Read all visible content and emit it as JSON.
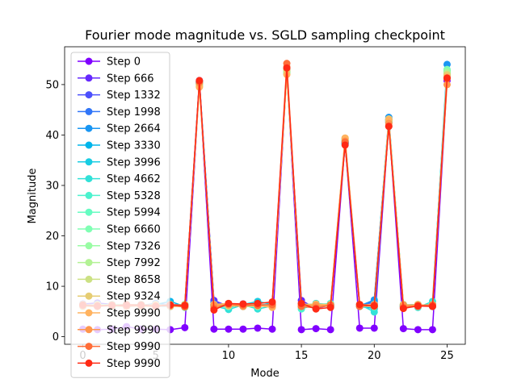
{
  "chart_data": {
    "type": "line",
    "title": "Fourier mode magnitude vs. SGLD sampling checkpoint",
    "xlabel": "Mode",
    "ylabel": "Magnitude",
    "xlim": [
      -1.25,
      26.25
    ],
    "ylim": [
      -1.5,
      57.5
    ],
    "xticks": [
      0,
      5,
      10,
      15,
      20,
      25
    ],
    "yticks": [
      0,
      10,
      20,
      30,
      40,
      50
    ],
    "grid": false,
    "legend_position": "upper-left",
    "x": [
      0,
      1,
      2,
      3,
      4,
      5,
      6,
      7,
      8,
      9,
      10,
      11,
      12,
      13,
      14,
      15,
      16,
      17,
      18,
      19,
      20,
      21,
      22,
      23,
      24,
      25
    ],
    "series": [
      {
        "name": "Step 0",
        "color": "#8000ff",
        "values": [
          1.5,
          1.4,
          1.5,
          2.0,
          1.5,
          1.5,
          1.4,
          1.8,
          50.2,
          1.5,
          1.5,
          1.5,
          1.7,
          1.5,
          52.8,
          1.4,
          1.6,
          1.4,
          38.5,
          1.7,
          1.7,
          42.5,
          1.6,
          1.4,
          1.4,
          50.8
        ]
      },
      {
        "name": "Step 666",
        "color": "#6629fe",
        "values": [
          6.5,
          6.7,
          6.4,
          6.0,
          6.2,
          6.5,
          6.4,
          6.3,
          50.8,
          7.2,
          6.0,
          6.3,
          6.0,
          6.5,
          52.5,
          7.2,
          5.6,
          6.3,
          38.5,
          6.2,
          6.6,
          43.0,
          5.9,
          6.2,
          6.0,
          51.5
        ]
      },
      {
        "name": "Step 1332",
        "color": "#4c50fc",
        "values": [
          6.2,
          6.0,
          6.3,
          6.1,
          6.4,
          6.2,
          6.3,
          6.0,
          50.5,
          6.8,
          6.3,
          6.5,
          6.1,
          6.3,
          52.9,
          6.6,
          6.0,
          6.1,
          38.3,
          6.0,
          6.5,
          42.8,
          6.1,
          6.0,
          6.2,
          52.0
        ]
      },
      {
        "name": "Step 1998",
        "color": "#3176f8",
        "values": [
          6.4,
          6.3,
          6.1,
          6.3,
          6.2,
          6.6,
          6.2,
          6.2,
          50.6,
          6.5,
          6.1,
          6.2,
          6.3,
          6.1,
          53.0,
          6.4,
          6.2,
          6.2,
          38.4,
          6.2,
          7.0,
          43.2,
          6.0,
          6.1,
          6.3,
          52.5
        ]
      },
      {
        "name": "Step 2664",
        "color": "#1996f3",
        "values": [
          6.3,
          6.1,
          6.2,
          6.2,
          6.3,
          6.3,
          6.3,
          6.1,
          50.4,
          6.3,
          6.2,
          6.0,
          6.2,
          6.2,
          52.3,
          6.2,
          6.3,
          6.3,
          38.2,
          6.1,
          7.3,
          43.5,
          6.2,
          6.2,
          6.4,
          54.0
        ]
      },
      {
        "name": "Step 3330",
        "color": "#00b5eb",
        "values": [
          6.1,
          6.2,
          6.3,
          6.4,
          6.0,
          6.4,
          7.0,
          6.0,
          50.5,
          6.4,
          6.3,
          6.1,
          6.4,
          6.3,
          52.6,
          6.3,
          6.1,
          6.0,
          38.6,
          6.0,
          5.6,
          42.9,
          6.1,
          6.3,
          6.1,
          52.8
        ]
      },
      {
        "name": "Step 3996",
        "color": "#18cde3",
        "values": [
          6.0,
          6.4,
          6.0,
          6.2,
          6.3,
          6.1,
          6.0,
          6.3,
          50.3,
          6.2,
          5.8,
          6.4,
          7.0,
          6.4,
          52.4,
          6.0,
          6.6,
          6.4,
          38.4,
          6.3,
          6.0,
          43.1,
          6.3,
          6.4,
          6.0,
          52.2
        ]
      },
      {
        "name": "Step 4662",
        "color": "#32e1d8",
        "values": [
          6.3,
          6.0,
          6.4,
          6.0,
          6.1,
          6.3,
          6.1,
          6.4,
          50.4,
          6.1,
          5.4,
          6.3,
          5.5,
          6.1,
          52.7,
          6.4,
          6.3,
          6.6,
          38.3,
          6.4,
          4.9,
          42.7,
          6.4,
          5.8,
          7.0,
          52.6
        ]
      },
      {
        "name": "Step 5328",
        "color": "#4cf2ce",
        "values": [
          6.2,
          6.3,
          6.2,
          6.3,
          6.4,
          6.0,
          6.2,
          6.2,
          50.2,
          6.0,
          6.6,
          6.1,
          6.3,
          6.2,
          52.9,
          5.5,
          6.4,
          6.0,
          38.7,
          6.2,
          5.9,
          42.6,
          6.2,
          6.2,
          6.2,
          52.4
        ]
      },
      {
        "name": "Step 5994",
        "color": "#66fcc2",
        "values": [
          6.4,
          6.1,
          6.1,
          6.1,
          6.2,
          6.2,
          6.4,
          5.8,
          50.1,
          6.3,
          6.2,
          6.4,
          6.1,
          6.0,
          52.5,
          6.1,
          6.2,
          6.5,
          38.9,
          6.3,
          6.2,
          42.4,
          6.0,
          6.3,
          6.3,
          51.8
        ]
      },
      {
        "name": "Step 6660",
        "color": "#80ffb4",
        "values": [
          6.1,
          6.4,
          6.3,
          6.2,
          6.1,
          6.4,
          6.0,
          6.1,
          50.0,
          6.2,
          6.0,
          6.2,
          6.2,
          6.3,
          52.4,
          6.2,
          6.0,
          6.1,
          39.0,
          6.1,
          6.3,
          42.8,
          6.2,
          6.1,
          6.1,
          53.0
        ]
      },
      {
        "name": "Step 7326",
        "color": "#99fca4",
        "values": [
          6.2,
          6.2,
          6.4,
          6.4,
          6.3,
          6.1,
          6.3,
          6.3,
          49.8,
          6.4,
          6.4,
          6.0,
          6.0,
          6.4,
          52.2,
          6.3,
          6.4,
          6.3,
          39.1,
          6.0,
          6.1,
          43.0,
          6.3,
          6.0,
          6.2,
          52.6
        ]
      },
      {
        "name": "Step 7992",
        "color": "#b3f295",
        "values": [
          6.3,
          6.3,
          6.0,
          6.0,
          6.4,
          6.2,
          6.2,
          6.4,
          49.9,
          6.1,
          6.3,
          6.3,
          6.4,
          6.1,
          52.6,
          6.0,
          6.3,
          6.2,
          39.2,
          6.2,
          6.4,
          42.9,
          6.1,
          6.4,
          6.0,
          52.3
        ]
      },
      {
        "name": "Step 8658",
        "color": "#cce184",
        "values": [
          6.0,
          6.0,
          6.2,
          6.3,
          6.2,
          6.4,
          6.1,
          6.0,
          50.1,
          6.3,
          6.5,
          6.4,
          6.3,
          6.0,
          52.8,
          6.4,
          6.5,
          6.4,
          39.3,
          6.4,
          6.2,
          42.7,
          6.4,
          6.2,
          6.4,
          52.0
        ]
      },
      {
        "name": "Step 9324",
        "color": "#e6cd73",
        "values": [
          6.4,
          6.1,
          6.3,
          6.1,
          6.0,
          6.0,
          6.4,
          6.2,
          49.6,
          6.0,
          6.1,
          6.1,
          6.1,
          6.3,
          53.0,
          6.1,
          6.1,
          6.0,
          39.4,
          6.3,
          6.4,
          43.2,
          6.0,
          6.3,
          6.3,
          51.9
        ]
      },
      {
        "name": "Step 9990",
        "color": "#ffb360",
        "values": [
          6.2,
          6.3,
          6.1,
          6.4,
          6.3,
          6.3,
          6.0,
          6.1,
          49.5,
          6.4,
          6.6,
          6.2,
          6.2,
          5.8,
          52.0,
          6.2,
          6.4,
          6.3,
          39.4,
          6.1,
          6.0,
          43.0,
          6.2,
          6.4,
          6.1,
          51.5
        ]
      },
      {
        "name": "Step 9990",
        "color": "#ff964c",
        "values": [
          6.1,
          6.2,
          6.2,
          6.2,
          6.1,
          6.2,
          6.3,
          6.3,
          50.3,
          6.2,
          6.3,
          6.0,
          6.4,
          6.2,
          53.5,
          6.3,
          6.2,
          6.1,
          38.8,
          6.2,
          6.2,
          42.3,
          6.3,
          6.0,
          6.2,
          50.0
        ]
      },
      {
        "name": "Step 9990",
        "color": "#ff6d38",
        "values": [
          6.2,
          6.0,
          6.3,
          6.0,
          6.2,
          6.1,
          6.2,
          5.9,
          50.6,
          5.6,
          6.5,
          6.3,
          6.2,
          6.4,
          54.2,
          6.0,
          5.7,
          6.3,
          38.6,
          6.0,
          6.3,
          41.8,
          5.8,
          6.2,
          6.3,
          51.2
        ]
      },
      {
        "name": "Step 9990",
        "color": "#ff2a15",
        "values": [
          6.3,
          6.1,
          6.2,
          6.3,
          6.3,
          6.0,
          6.3,
          6.2,
          50.8,
          5.3,
          6.6,
          6.5,
          6.6,
          6.9,
          53.3,
          6.6,
          5.5,
          5.8,
          38.0,
          6.4,
          6.1,
          41.7,
          5.6,
          6.1,
          6.0,
          51.3
        ]
      }
    ]
  }
}
